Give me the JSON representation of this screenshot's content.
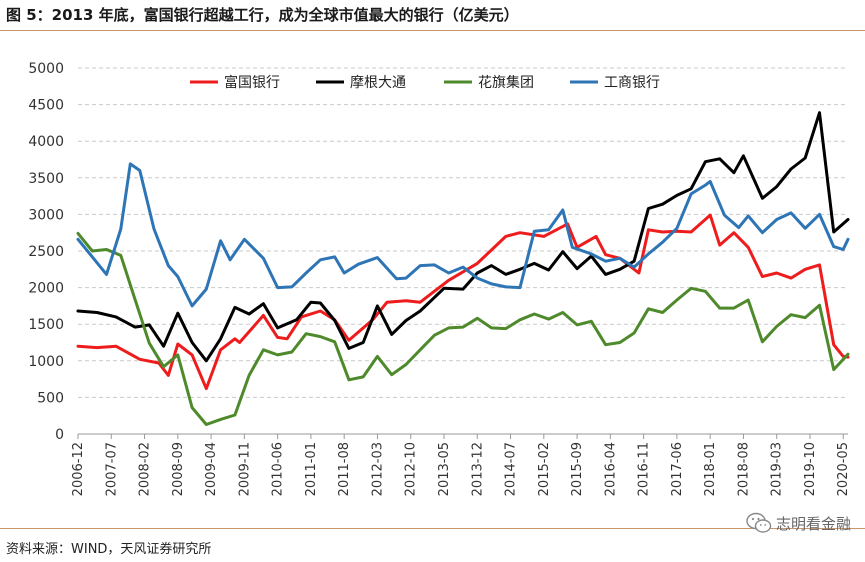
{
  "figure": {
    "title": "图 5：2013 年底，富国银行超越工行，成为全球市值最大的银行（亿美元）",
    "source": "资料来源：WIND，天风证券研究所",
    "watermark": "志明看金融",
    "watermark_icon": "wechat-icon"
  },
  "chart_data": {
    "type": "line",
    "title": "2013 年底，富国银行超越工行，成为全球市值最大的银行（亿美元）",
    "xlabel": "",
    "ylabel": "",
    "ylim": [
      0,
      5000
    ],
    "yticks": [
      0,
      500,
      1000,
      1500,
      2000,
      2500,
      3000,
      3500,
      4000,
      4500,
      5000
    ],
    "grid": "horizontal dashed",
    "legend_position": "top",
    "x_start": "2006-12",
    "x_step_months": 1,
    "x_end": "2020-06",
    "xtick_labels": [
      "2006-12",
      "2007-07",
      "2008-02",
      "2008-09",
      "2009-04",
      "2009-11",
      "2010-06",
      "2011-01",
      "2011-08",
      "2012-03",
      "2012-10",
      "2013-05",
      "2013-12",
      "2014-07",
      "2015-02",
      "2015-09",
      "2016-04",
      "2016-11",
      "2017-06",
      "2018-01",
      "2018-08",
      "2019-03",
      "2019-10",
      "2020-05"
    ],
    "series": [
      {
        "name": "富国银行",
        "color": "#ee1c1c",
        "points": [
          [
            "2006-12",
            1200
          ],
          [
            "2007-04",
            1180
          ],
          [
            "2007-08",
            1200
          ],
          [
            "2008-01",
            1020
          ],
          [
            "2008-05",
            970
          ],
          [
            "2008-07",
            800
          ],
          [
            "2008-09",
            1230
          ],
          [
            "2008-12",
            1080
          ],
          [
            "2009-03",
            620
          ],
          [
            "2009-06",
            1150
          ],
          [
            "2009-09",
            1300
          ],
          [
            "2009-10",
            1250
          ],
          [
            "2010-03",
            1620
          ],
          [
            "2010-06",
            1320
          ],
          [
            "2010-08",
            1300
          ],
          [
            "2010-11",
            1600
          ],
          [
            "2011-03",
            1680
          ],
          [
            "2011-06",
            1560
          ],
          [
            "2011-09",
            1280
          ],
          [
            "2012-02",
            1560
          ],
          [
            "2012-05",
            1800
          ],
          [
            "2012-09",
            1820
          ],
          [
            "2012-12",
            1800
          ],
          [
            "2013-04",
            2000
          ],
          [
            "2013-06",
            2100
          ],
          [
            "2013-12",
            2330
          ],
          [
            "2014-06",
            2700
          ],
          [
            "2014-09",
            2750
          ],
          [
            "2015-02",
            2700
          ],
          [
            "2015-07",
            2870
          ],
          [
            "2015-09",
            2550
          ],
          [
            "2016-01",
            2700
          ],
          [
            "2016-03",
            2450
          ],
          [
            "2016-06",
            2400
          ],
          [
            "2016-10",
            2200
          ],
          [
            "2016-12",
            2790
          ],
          [
            "2017-03",
            2760
          ],
          [
            "2017-06",
            2770
          ],
          [
            "2017-09",
            2760
          ],
          [
            "2018-01",
            2990
          ],
          [
            "2018-03",
            2580
          ],
          [
            "2018-06",
            2750
          ],
          [
            "2018-09",
            2550
          ],
          [
            "2018-12",
            2150
          ],
          [
            "2019-03",
            2200
          ],
          [
            "2019-06",
            2130
          ],
          [
            "2019-09",
            2250
          ],
          [
            "2019-12",
            2310
          ],
          [
            "2020-03",
            1220
          ],
          [
            "2020-05",
            1060
          ],
          [
            "2020-06",
            1050
          ]
        ]
      },
      {
        "name": "摩根大通",
        "color": "#000000",
        "points": [
          [
            "2006-12",
            1680
          ],
          [
            "2007-04",
            1660
          ],
          [
            "2007-08",
            1600
          ],
          [
            "2007-12",
            1460
          ],
          [
            "2008-03",
            1490
          ],
          [
            "2008-06",
            1200
          ],
          [
            "2008-09",
            1650
          ],
          [
            "2008-12",
            1250
          ],
          [
            "2009-03",
            1000
          ],
          [
            "2009-06",
            1300
          ],
          [
            "2009-09",
            1730
          ],
          [
            "2009-12",
            1640
          ],
          [
            "2010-03",
            1780
          ],
          [
            "2010-06",
            1450
          ],
          [
            "2010-10",
            1560
          ],
          [
            "2011-01",
            1800
          ],
          [
            "2011-03",
            1790
          ],
          [
            "2011-06",
            1550
          ],
          [
            "2011-09",
            1170
          ],
          [
            "2011-12",
            1250
          ],
          [
            "2012-03",
            1750
          ],
          [
            "2012-06",
            1360
          ],
          [
            "2012-09",
            1550
          ],
          [
            "2012-12",
            1680
          ],
          [
            "2013-05",
            1990
          ],
          [
            "2013-09",
            1980
          ],
          [
            "2013-12",
            2200
          ],
          [
            "2014-03",
            2300
          ],
          [
            "2014-06",
            2180
          ],
          [
            "2014-09",
            2250
          ],
          [
            "2014-12",
            2330
          ],
          [
            "2015-03",
            2240
          ],
          [
            "2015-06",
            2490
          ],
          [
            "2015-09",
            2260
          ],
          [
            "2015-12",
            2430
          ],
          [
            "2016-03",
            2180
          ],
          [
            "2016-06",
            2250
          ],
          [
            "2016-09",
            2360
          ],
          [
            "2016-12",
            3080
          ],
          [
            "2017-03",
            3140
          ],
          [
            "2017-06",
            3260
          ],
          [
            "2017-09",
            3350
          ],
          [
            "2017-12",
            3720
          ],
          [
            "2018-03",
            3760
          ],
          [
            "2018-06",
            3570
          ],
          [
            "2018-08",
            3800
          ],
          [
            "2018-12",
            3220
          ],
          [
            "2019-03",
            3380
          ],
          [
            "2019-06",
            3620
          ],
          [
            "2019-09",
            3770
          ],
          [
            "2019-12",
            4390
          ],
          [
            "2020-03",
            2760
          ],
          [
            "2020-06",
            2930
          ]
        ]
      },
      {
        "name": "花旗集团",
        "color": "#4e8a2b",
        "points": [
          [
            "2006-12",
            2740
          ],
          [
            "2007-03",
            2500
          ],
          [
            "2007-06",
            2520
          ],
          [
            "2007-09",
            2440
          ],
          [
            "2007-12",
            1840
          ],
          [
            "2008-03",
            1240
          ],
          [
            "2008-06",
            920
          ],
          [
            "2008-09",
            1080
          ],
          [
            "2008-12",
            360
          ],
          [
            "2009-03",
            130
          ],
          [
            "2009-06",
            200
          ],
          [
            "2009-09",
            260
          ],
          [
            "2009-12",
            800
          ],
          [
            "2010-03",
            1150
          ],
          [
            "2010-06",
            1080
          ],
          [
            "2010-09",
            1120
          ],
          [
            "2010-12",
            1370
          ],
          [
            "2011-03",
            1330
          ],
          [
            "2011-06",
            1260
          ],
          [
            "2011-09",
            740
          ],
          [
            "2011-12",
            780
          ],
          [
            "2012-03",
            1060
          ],
          [
            "2012-06",
            810
          ],
          [
            "2012-09",
            950
          ],
          [
            "2012-12",
            1150
          ],
          [
            "2013-03",
            1350
          ],
          [
            "2013-06",
            1450
          ],
          [
            "2013-09",
            1460
          ],
          [
            "2013-12",
            1580
          ],
          [
            "2014-03",
            1450
          ],
          [
            "2014-06",
            1440
          ],
          [
            "2014-09",
            1560
          ],
          [
            "2014-12",
            1640
          ],
          [
            "2015-03",
            1570
          ],
          [
            "2015-06",
            1660
          ],
          [
            "2015-09",
            1490
          ],
          [
            "2015-12",
            1540
          ],
          [
            "2016-03",
            1220
          ],
          [
            "2016-06",
            1250
          ],
          [
            "2016-09",
            1380
          ],
          [
            "2016-12",
            1710
          ],
          [
            "2017-03",
            1660
          ],
          [
            "2017-06",
            1830
          ],
          [
            "2017-09",
            1990
          ],
          [
            "2017-12",
            1950
          ],
          [
            "2018-03",
            1720
          ],
          [
            "2018-06",
            1720
          ],
          [
            "2018-09",
            1830
          ],
          [
            "2018-12",
            1260
          ],
          [
            "2019-03",
            1470
          ],
          [
            "2019-06",
            1630
          ],
          [
            "2019-09",
            1590
          ],
          [
            "2019-12",
            1760
          ],
          [
            "2020-03",
            880
          ],
          [
            "2020-06",
            1090
          ]
        ]
      },
      {
        "name": "工商银行",
        "color": "#2e75b6",
        "points": [
          [
            "2006-12",
            2660
          ],
          [
            "2007-03",
            2420
          ],
          [
            "2007-06",
            2180
          ],
          [
            "2007-09",
            2800
          ],
          [
            "2007-11",
            3690
          ],
          [
            "2008-01",
            3600
          ],
          [
            "2008-04",
            2800
          ],
          [
            "2008-07",
            2300
          ],
          [
            "2008-09",
            2150
          ],
          [
            "2008-12",
            1750
          ],
          [
            "2009-03",
            1980
          ],
          [
            "2009-06",
            2640
          ],
          [
            "2009-08",
            2380
          ],
          [
            "2009-11",
            2660
          ],
          [
            "2010-03",
            2400
          ],
          [
            "2010-06",
            2000
          ],
          [
            "2010-09",
            2010
          ],
          [
            "2010-12",
            2200
          ],
          [
            "2011-03",
            2380
          ],
          [
            "2011-06",
            2420
          ],
          [
            "2011-08",
            2200
          ],
          [
            "2011-11",
            2320
          ],
          [
            "2012-03",
            2410
          ],
          [
            "2012-07",
            2120
          ],
          [
            "2012-09",
            2130
          ],
          [
            "2012-12",
            2300
          ],
          [
            "2013-03",
            2310
          ],
          [
            "2013-06",
            2200
          ],
          [
            "2013-09",
            2280
          ],
          [
            "2013-12",
            2130
          ],
          [
            "2014-03",
            2050
          ],
          [
            "2014-06",
            2010
          ],
          [
            "2014-09",
            2000
          ],
          [
            "2014-12",
            2770
          ],
          [
            "2015-03",
            2790
          ],
          [
            "2015-06",
            3060
          ],
          [
            "2015-08",
            2550
          ],
          [
            "2015-12",
            2460
          ],
          [
            "2016-03",
            2360
          ],
          [
            "2016-06",
            2400
          ],
          [
            "2016-09",
            2280
          ],
          [
            "2016-12",
            2460
          ],
          [
            "2017-03",
            2620
          ],
          [
            "2017-06",
            2810
          ],
          [
            "2017-09",
            3280
          ],
          [
            "2017-12",
            3400
          ],
          [
            "2018-01",
            3450
          ],
          [
            "2018-04",
            2990
          ],
          [
            "2018-07",
            2820
          ],
          [
            "2018-09",
            2980
          ],
          [
            "2018-12",
            2750
          ],
          [
            "2019-03",
            2930
          ],
          [
            "2019-06",
            3020
          ],
          [
            "2019-09",
            2810
          ],
          [
            "2019-12",
            3000
          ],
          [
            "2020-03",
            2560
          ],
          [
            "2020-05",
            2520
          ],
          [
            "2020-06",
            2660
          ]
        ]
      }
    ]
  }
}
